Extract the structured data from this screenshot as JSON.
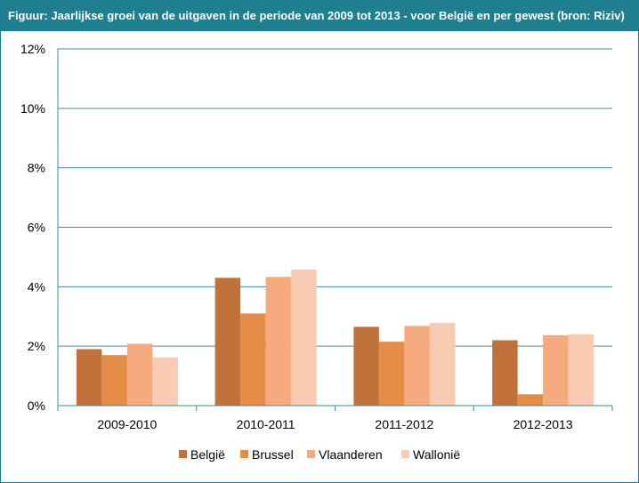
{
  "chart_data": {
    "type": "bar",
    "title": "Figuur: Jaarlijkse groei van de uitgaven in de periode van 2009 tot 2013 - voor België en per gewest (bron: Riziv)",
    "xlabel": "",
    "ylabel": "",
    "categories": [
      "2009-2010",
      "2010-2011",
      "2011-2012",
      "2012-2013"
    ],
    "ylim": [
      0,
      12
    ],
    "yticks": [
      "0%",
      "2%",
      "4%",
      "6%",
      "8%",
      "10%",
      "12%"
    ],
    "grid": true,
    "legend_position": "bottom",
    "series": [
      {
        "name": "België",
        "color": "#c0723a",
        "values": [
          1.9,
          4.3,
          2.65,
          2.2
        ]
      },
      {
        "name": "Brussel",
        "color": "#e58c46",
        "values": [
          1.7,
          3.1,
          2.15,
          0.38
        ]
      },
      {
        "name": "Vlaanderen",
        "color": "#f6ab7f",
        "values": [
          2.08,
          4.33,
          2.68,
          2.37
        ]
      },
      {
        "name": "Wallonië",
        "color": "#f8cbb2",
        "values": [
          1.62,
          4.58,
          2.78,
          2.4
        ]
      }
    ]
  }
}
